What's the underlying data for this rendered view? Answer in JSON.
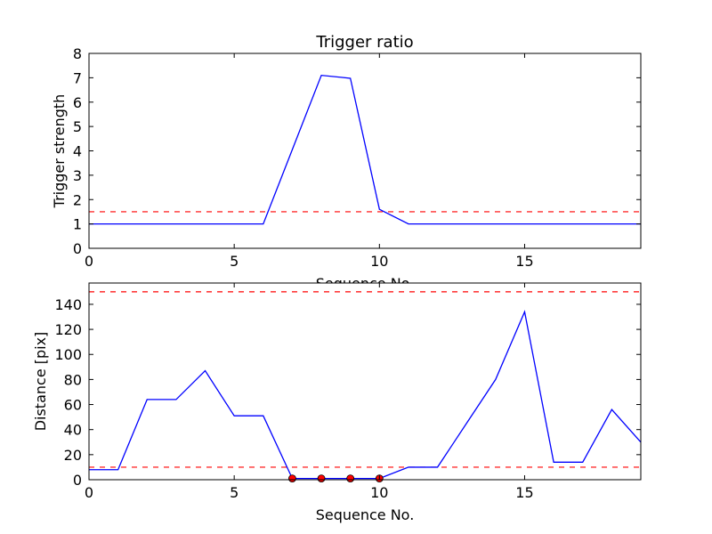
{
  "chart_data": [
    {
      "type": "line",
      "title": "Trigger ratio",
      "xlabel": "Sequence No.",
      "ylabel": "Trigger strength",
      "xlim": [
        0,
        19
      ],
      "ylim": [
        0,
        8
      ],
      "xticks": [
        0,
        5,
        10,
        15
      ],
      "yticks": [
        0,
        1,
        2,
        3,
        4,
        5,
        6,
        7,
        8
      ],
      "grid": false,
      "series": [
        {
          "color": "#0000ff",
          "x": [
            0,
            1,
            2,
            3,
            4,
            5,
            6,
            7,
            8,
            9,
            10,
            11,
            12,
            13,
            14,
            15,
            16,
            17,
            18,
            19
          ],
          "y": [
            1,
            1,
            1,
            1,
            1,
            1,
            1,
            4.05,
            7.1,
            6.98,
            1.6,
            1,
            1,
            1,
            1,
            1,
            1,
            1,
            1,
            1
          ]
        }
      ],
      "thresholds": [
        {
          "y": 1.5,
          "color": "#ff0000",
          "style": "dashed"
        }
      ]
    },
    {
      "type": "line",
      "title": "",
      "xlabel": "Sequence No.",
      "ylabel": "Distance [pix]",
      "xlim": [
        0,
        19
      ],
      "ylim": [
        0,
        157
      ],
      "xticks": [
        0,
        5,
        10,
        15
      ],
      "yticks": [
        0,
        20,
        40,
        60,
        80,
        100,
        120,
        140
      ],
      "grid": false,
      "series": [
        {
          "color": "#0000ff",
          "x": [
            0,
            1,
            2,
            3,
            4,
            5,
            6,
            7,
            8,
            9,
            10,
            11,
            12,
            13,
            14,
            15,
            16,
            17,
            18,
            19
          ],
          "y": [
            8,
            8,
            64,
            64,
            87,
            51,
            51,
            1,
            1,
            1,
            1,
            10,
            10,
            45,
            80,
            134,
            14,
            14,
            56,
            30
          ]
        }
      ],
      "markers": [
        {
          "color": "#ff0000",
          "x": [
            7,
            8,
            9,
            10
          ],
          "y": [
            1,
            1,
            1,
            1
          ]
        }
      ],
      "thresholds": [
        {
          "y": 10,
          "color": "#ff0000",
          "style": "dashed"
        },
        {
          "y": 150,
          "color": "#ff0000",
          "style": "dashed"
        }
      ]
    }
  ]
}
